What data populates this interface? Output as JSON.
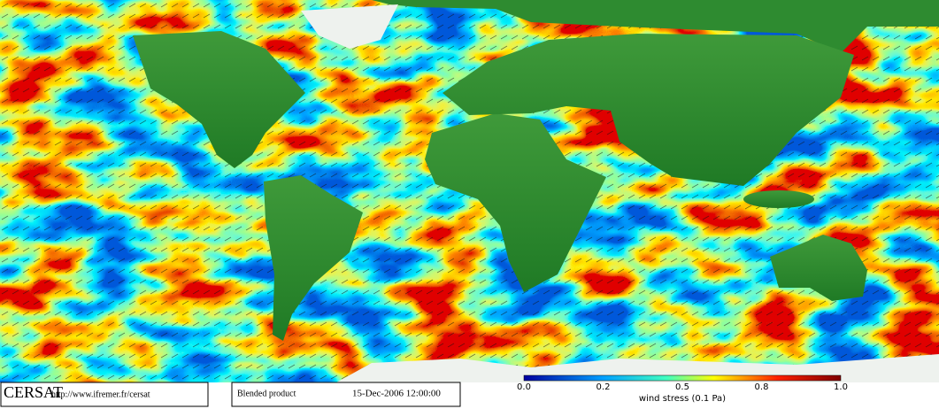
{
  "footer": {
    "logo": "CERSAT",
    "url": "http://www.ifremer.fr/cersat",
    "product": "Blended product",
    "datetime": "15-Dec-2006 12:00:00"
  },
  "colorbar": {
    "labels": [
      "0.0",
      "0.2",
      "0.5",
      "0.8",
      "1.0"
    ],
    "title": "wind stress (0.1 Pa)"
  }
}
